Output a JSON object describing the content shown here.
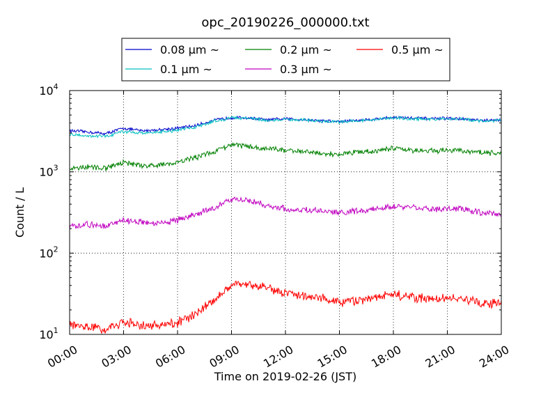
{
  "chart_data": {
    "type": "line",
    "title": "opc_20190226_000000.txt",
    "xlabel": "Time on 2019-02-26 (JST)",
    "ylabel": "Count / L",
    "yscale": "log",
    "xlim": [
      0,
      24
    ],
    "ylim": [
      10,
      10000
    ],
    "grid": true,
    "legend_placement": "top-center",
    "x_tick_labels": [
      "00:00",
      "03:00",
      "06:00",
      "09:00",
      "12:00",
      "15:00",
      "18:00",
      "21:00",
      "24:00"
    ],
    "y_tick_labels": [
      {
        "base": "10",
        "exp": "1"
      },
      {
        "base": "10",
        "exp": "2"
      },
      {
        "base": "10",
        "exp": "3"
      },
      {
        "base": "10",
        "exp": "4"
      }
    ],
    "x_hours": [
      0,
      1,
      2,
      3,
      4,
      5,
      6,
      7,
      8,
      9,
      10,
      11,
      12,
      13,
      14,
      15,
      16,
      17,
      18,
      19,
      20,
      21,
      22,
      23,
      24
    ],
    "series": [
      {
        "name": "0.08 μm ~",
        "color": "#0000cc",
        "noise": 0.03,
        "values": [
          3200,
          3100,
          2950,
          3450,
          3200,
          3300,
          3450,
          3700,
          4300,
          4650,
          4600,
          4350,
          4500,
          4400,
          4250,
          4150,
          4300,
          4450,
          4700,
          4600,
          4500,
          4550,
          4450,
          4250,
          4350
        ]
      },
      {
        "name": "0.1 μm ~",
        "color": "#00bfbf",
        "noise": 0.03,
        "values": [
          2900,
          2800,
          2700,
          3150,
          3000,
          3100,
          3250,
          3550,
          4200,
          4600,
          4550,
          4300,
          4400,
          4350,
          4200,
          4100,
          4250,
          4400,
          4600,
          4500,
          4450,
          4500,
          4400,
          4200,
          4300
        ]
      },
      {
        "name": "0.2 μm ~",
        "color": "#008000",
        "noise": 0.05,
        "values": [
          1100,
          1150,
          1100,
          1300,
          1200,
          1200,
          1300,
          1500,
          1750,
          2150,
          2050,
          1950,
          1850,
          1800,
          1700,
          1650,
          1750,
          1800,
          1950,
          1850,
          1800,
          1850,
          1800,
          1700,
          1700
        ]
      },
      {
        "name": "0.3 μm ~",
        "color": "#bf00bf",
        "noise": 0.06,
        "values": [
          215,
          225,
          210,
          255,
          240,
          235,
          255,
          300,
          360,
          460,
          450,
          380,
          350,
          340,
          330,
          315,
          330,
          345,
          375,
          360,
          345,
          355,
          345,
          310,
          305
        ]
      },
      {
        "name": "0.5 μm ~",
        "color": "#ff0000",
        "noise": 0.09,
        "values": [
          13.5,
          12.5,
          11.5,
          14,
          13,
          13,
          14,
          18,
          26,
          40,
          40,
          38,
          32,
          30,
          28,
          25,
          26,
          28,
          31,
          29,
          27,
          28,
          27,
          24,
          24
        ]
      }
    ]
  }
}
